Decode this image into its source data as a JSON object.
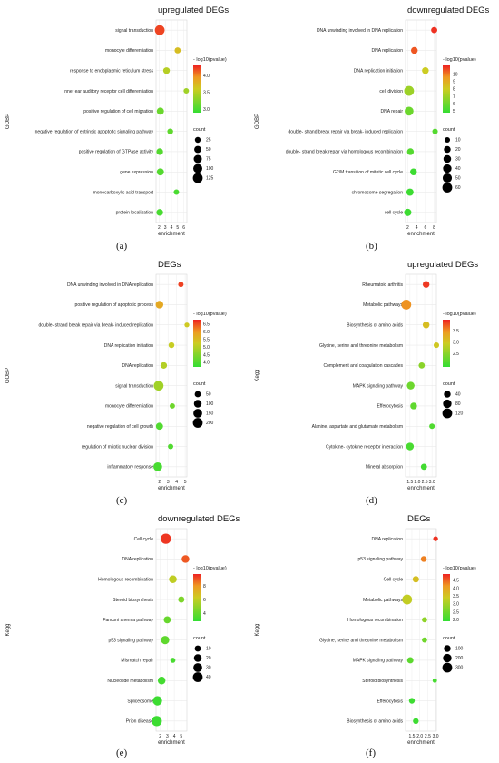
{
  "panels": [
    {
      "label": "(a)",
      "chart_data": {
        "type": "scatter",
        "title": "upregulated DEGs",
        "ylabel": "GOBP",
        "xlabel": "enrichment",
        "x_ticks": [
          "2",
          "3",
          "4",
          "5",
          "6"
        ],
        "xlim": [
          1.5,
          6.5
        ],
        "categories": [
          "signal transduction",
          "monocyte differentiation",
          "response to endoplasmic reticulum stress",
          "inner ear auditory receptor cell differentiation",
          "positive regulation of cell migration",
          "negative regulation of extrinsic apoptotic signaling pathway",
          "positive regulation of GTPase activity",
          "gene expression",
          "monocarboxylic acid transport",
          "protein localization"
        ],
        "enrichment": [
          2.1,
          5.0,
          3.2,
          6.4,
          2.2,
          3.8,
          2.1,
          2.2,
          4.8,
          2.1
        ],
        "neg_log10_pvalue": [
          4.2,
          3.7,
          3.5,
          3.4,
          3.15,
          3.1,
          3.05,
          3.05,
          3.0,
          3.0
        ],
        "count": [
          125,
          30,
          40,
          20,
          50,
          25,
          40,
          50,
          20,
          40
        ],
        "color_legend": {
          "title": "- log10(pvalue)",
          "ticks": [
            "4.0",
            "3.5",
            "3.0"
          ],
          "min": 2.9,
          "max": 4.3
        },
        "size_legend": {
          "title": "count",
          "values": [
            "25",
            "50",
            "75",
            "100",
            "125"
          ]
        }
      }
    },
    {
      "label": "(b)",
      "chart_data": {
        "type": "scatter",
        "title": "downregulated DEGs",
        "ylabel": "GOBP",
        "xlabel": "enrichment",
        "x_ticks": [
          "2",
          "4",
          "6",
          "8"
        ],
        "xlim": [
          1.5,
          8.5
        ],
        "categories": [
          "DNA unwinding involved in DNA replication",
          "DNA replication",
          "DNA replication initiation",
          "cell division",
          "DNA repair",
          "double- strand break repair via break- induced replication",
          "double- strand break repair via homologous recombination",
          "G2/M transition of mitotic cell cycle",
          "chromosome segregation",
          "cell cycle"
        ],
        "enrichment": [
          8.0,
          3.5,
          6.0,
          2.3,
          2.3,
          8.2,
          2.6,
          3.3,
          2.5,
          2.0
        ],
        "neg_log10_pvalue": [
          11,
          10.5,
          8,
          7,
          6,
          5.5,
          5.5,
          5,
          5,
          5
        ],
        "count": [
          15,
          20,
          20,
          60,
          45,
          10,
          20,
          20,
          25,
          25
        ],
        "color_legend": {
          "title": "- log10(pvalue)",
          "ticks": [
            "10",
            "9",
            "8",
            "7",
            "6",
            "5"
          ],
          "min": 4.8,
          "max": 11.2
        },
        "size_legend": {
          "title": "count",
          "values": [
            "10",
            "20",
            "30",
            "40",
            "50",
            "60"
          ]
        }
      }
    },
    {
      "label": "(c)",
      "chart_data": {
        "type": "scatter",
        "title": "DEGs",
        "ylabel": "GOBP",
        "xlabel": "enrichment",
        "x_ticks": [
          "2",
          "3",
          "4",
          "5"
        ],
        "xlim": [
          1.6,
          5.2
        ],
        "categories": [
          "DNA unwinding involved in DNA replication",
          "positive regulation of apoptotic process",
          "double- strand break repair via break- induced replication",
          "DNA replication initiation",
          "DNA replication",
          "signal transduction",
          "monocyte differentiation",
          "negative regulation of cell growth",
          "regulation of mitotic nuclear division",
          "inflammatory response"
        ],
        "enrichment": [
          4.5,
          2.0,
          5.2,
          3.4,
          2.5,
          1.9,
          3.5,
          2.0,
          3.3,
          1.8
        ],
        "neg_log10_pvalue": [
          6.6,
          5.8,
          5.3,
          5.2,
          5.0,
          4.8,
          4.3,
          4.0,
          4.0,
          3.9
        ],
        "count": [
          30,
          100,
          20,
          40,
          60,
          200,
          30,
          80,
          30,
          150
        ],
        "color_legend": {
          "title": "- log10(pvalue)",
          "ticks": [
            "6.5",
            "6.0",
            "5.5",
            "5.0",
            "4.5",
            "4.0"
          ],
          "min": 3.7,
          "max": 6.8
        },
        "size_legend": {
          "title": "count",
          "values": [
            "50",
            "100",
            "150",
            "200"
          ]
        }
      }
    },
    {
      "label": "(d)",
      "chart_data": {
        "type": "scatter",
        "title": "upregulated DEGs",
        "ylabel": "Kegg",
        "xlabel": "enrichment",
        "x_ticks": [
          "1.5",
          "2.0",
          "2.5",
          "3.0"
        ],
        "xlim": [
          1.2,
          3.3
        ],
        "categories": [
          "Rheumatoid arthritis",
          "Metabolic pathways",
          "Biosynthesis of amino acids",
          "Glycine, serine and threonine metabolism",
          "Complement and coagulation cascades",
          "MAPK signaling pathway",
          "Efferocytosis",
          "Alanine, aspartate and glutamate metabolism",
          "Cytokine- cytokine receptor interaction",
          "Mineral absorption"
        ],
        "enrichment": [
          2.6,
          1.25,
          2.6,
          3.3,
          2.3,
          1.55,
          1.75,
          3.0,
          1.5,
          2.45
        ],
        "neg_log10_pvalue": [
          3.9,
          3.5,
          3.1,
          3.0,
          2.5,
          2.3,
          2.2,
          2.1,
          2.05,
          2.0
        ],
        "count": [
          40,
          120,
          40,
          20,
          30,
          60,
          40,
          20,
          60,
          30
        ],
        "color_legend": {
          "title": "- log10(pvalue)",
          "ticks": [
            "3.5",
            "3.0",
            "2.5"
          ],
          "min": 1.9,
          "max": 4.0
        },
        "size_legend": {
          "title": "count",
          "values": [
            "40",
            "80",
            "120"
          ]
        }
      }
    },
    {
      "label": "(e)",
      "chart_data": {
        "type": "scatter",
        "title": "downregulated DEGs",
        "ylabel": "Kegg",
        "xlabel": "enrichment",
        "x_ticks": [
          "2",
          "3",
          "4",
          "5"
        ],
        "xlim": [
          1.4,
          5.8
        ],
        "categories": [
          "Cell cycle",
          "DNA replication",
          "Homologous recombination",
          "Steroid biosynthesis",
          "Fanconi anemia pathway",
          "p53 signaling pathway",
          "Mismatch repair",
          "Nucleotide metabolism",
          "Spliceosome",
          "Prion disease"
        ],
        "enrichment": [
          2.8,
          5.6,
          3.8,
          5.0,
          3.0,
          2.7,
          3.8,
          2.2,
          1.6,
          1.5
        ],
        "neg_log10_pvalue": [
          9.5,
          9.0,
          6.0,
          4.5,
          4.0,
          3.8,
          3.3,
          3.2,
          3.0,
          3.0
        ],
        "count": [
          45,
          20,
          20,
          10,
          15,
          25,
          5,
          20,
          35,
          45
        ],
        "color_legend": {
          "title": "- log10(pvalue)",
          "ticks": [
            "8",
            "6",
            "4"
          ],
          "min": 2.8,
          "max": 9.8
        },
        "size_legend": {
          "title": "count",
          "values": [
            "10",
            "20",
            "30",
            "40"
          ]
        }
      }
    },
    {
      "label": "(f)",
      "chart_data": {
        "type": "scatter",
        "title": "DEGs",
        "ylabel": "Kegg",
        "xlabel": "enrichment",
        "x_ticks": [
          "1.5",
          "2.0",
          "2.5",
          "3.0"
        ],
        "xlim": [
          1.1,
          3.05
        ],
        "categories": [
          "DNA replication",
          "p53 signaling pathway",
          "Cell cycle",
          "Metabolic pathways",
          "Homologous recombination",
          "Glycine, serine and threonine metabolism",
          "MAPK signaling pathway",
          "Steroid biosynthesis",
          "Efferocytosis",
          "Biosynthesis of amino acids"
        ],
        "enrichment": [
          3.0,
          2.25,
          1.75,
          1.2,
          2.3,
          2.3,
          1.4,
          2.95,
          1.5,
          1.75
        ],
        "neg_log10_pvalue": [
          4.8,
          4.3,
          3.6,
          3.3,
          2.8,
          2.5,
          2.3,
          2.1,
          2.0,
          2.0
        ],
        "count": [
          30,
          60,
          80,
          300,
          40,
          40,
          80,
          20,
          60,
          60
        ],
        "color_legend": {
          "title": "- log10(pvalue)",
          "ticks": [
            "4.5",
            "4.0",
            "3.5",
            "3.0",
            "2.5",
            "2.0"
          ],
          "min": 1.9,
          "max": 4.9
        },
        "size_legend": {
          "title": "count",
          "values": [
            "100",
            "200",
            "300"
          ]
        }
      }
    }
  ]
}
